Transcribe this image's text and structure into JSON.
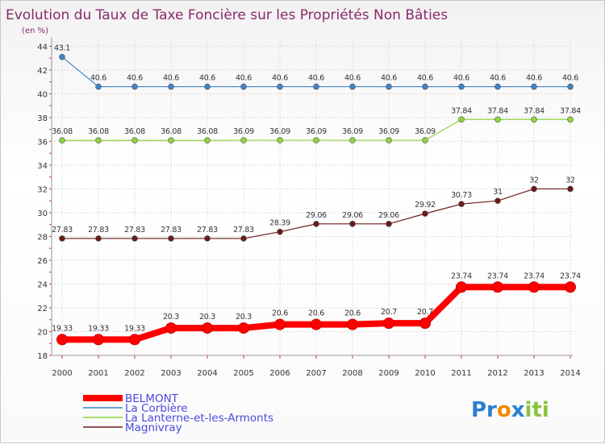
{
  "chart_data": {
    "type": "line",
    "title": "Evolution du Taux de Taxe Foncière sur les Propriétés Non Bâties",
    "ylabel": "(en %)",
    "xlabel": "",
    "ylim": [
      18,
      44.5
    ],
    "yticks": [
      18,
      20,
      22,
      24,
      26,
      28,
      30,
      32,
      34,
      36,
      38,
      40,
      42,
      44
    ],
    "grid": true,
    "legend_position": "bottom-left",
    "categories": [
      "2000",
      "2001",
      "2002",
      "2003",
      "2004",
      "2005",
      "2006",
      "2007",
      "2008",
      "2009",
      "2010",
      "2011",
      "2012",
      "2013",
      "2014"
    ],
    "series": [
      {
        "name": "BELMONT",
        "color": "#ff0000",
        "emphasis": true,
        "values": [
          19.33,
          19.33,
          19.33,
          20.3,
          20.3,
          20.3,
          20.6,
          20.6,
          20.6,
          20.7,
          20.7,
          23.74,
          23.74,
          23.74,
          23.74
        ],
        "labels": [
          "19.33",
          "19.33",
          "19.33",
          "20.3",
          "20.3",
          "20.3",
          "20.6",
          "20.6",
          "20.6",
          "20.7",
          "20.7",
          "23.74",
          "23.74",
          "23.74",
          "23.74"
        ]
      },
      {
        "name": "La Corbière",
        "color": "#3d85c6",
        "emphasis": false,
        "values": [
          43.1,
          40.6,
          40.6,
          40.6,
          40.6,
          40.6,
          40.6,
          40.6,
          40.6,
          40.6,
          40.6,
          40.6,
          40.6,
          40.6,
          40.6
        ],
        "labels": [
          "43.1",
          "40.6",
          "40.6",
          "40.6",
          "40.6",
          "40.6",
          "40.6",
          "40.6",
          "40.6",
          "40.6",
          "40.6",
          "40.6",
          "40.6",
          "40.6",
          "40.6"
        ]
      },
      {
        "name": "La Lanterne-et-les-Armonts",
        "color": "#8ed43f",
        "emphasis": false,
        "values": [
          36.08,
          36.08,
          36.08,
          36.08,
          36.08,
          36.09,
          36.09,
          36.09,
          36.09,
          36.09,
          36.09,
          37.84,
          37.84,
          37.84,
          37.84
        ],
        "labels": [
          "36.08",
          "36.08",
          "36.08",
          "36.08",
          "36.08",
          "36.09",
          "36.09",
          "36.09",
          "36.09",
          "36.09",
          "36.09",
          "37.84",
          "37.84",
          "37.84",
          "37.84"
        ]
      },
      {
        "name": "Magnivray",
        "color": "#6b1a1a",
        "emphasis": false,
        "values": [
          27.83,
          27.83,
          27.83,
          27.83,
          27.83,
          27.83,
          28.39,
          29.06,
          29.06,
          29.06,
          29.92,
          30.73,
          31,
          32,
          32
        ],
        "labels": [
          "27.83",
          "27.83",
          "27.83",
          "27.83",
          "27.83",
          "27.83",
          "28.39",
          "29.06",
          "29.06",
          "29.06",
          "29.92",
          "30.73",
          "31",
          "32",
          "32"
        ]
      }
    ]
  },
  "brand": {
    "parts": [
      "Pr",
      "o",
      "x",
      "iti"
    ],
    "colors": [
      "#2a7fd4",
      "#f08a00",
      "#2a7fd4",
      "#8ac43f"
    ]
  }
}
